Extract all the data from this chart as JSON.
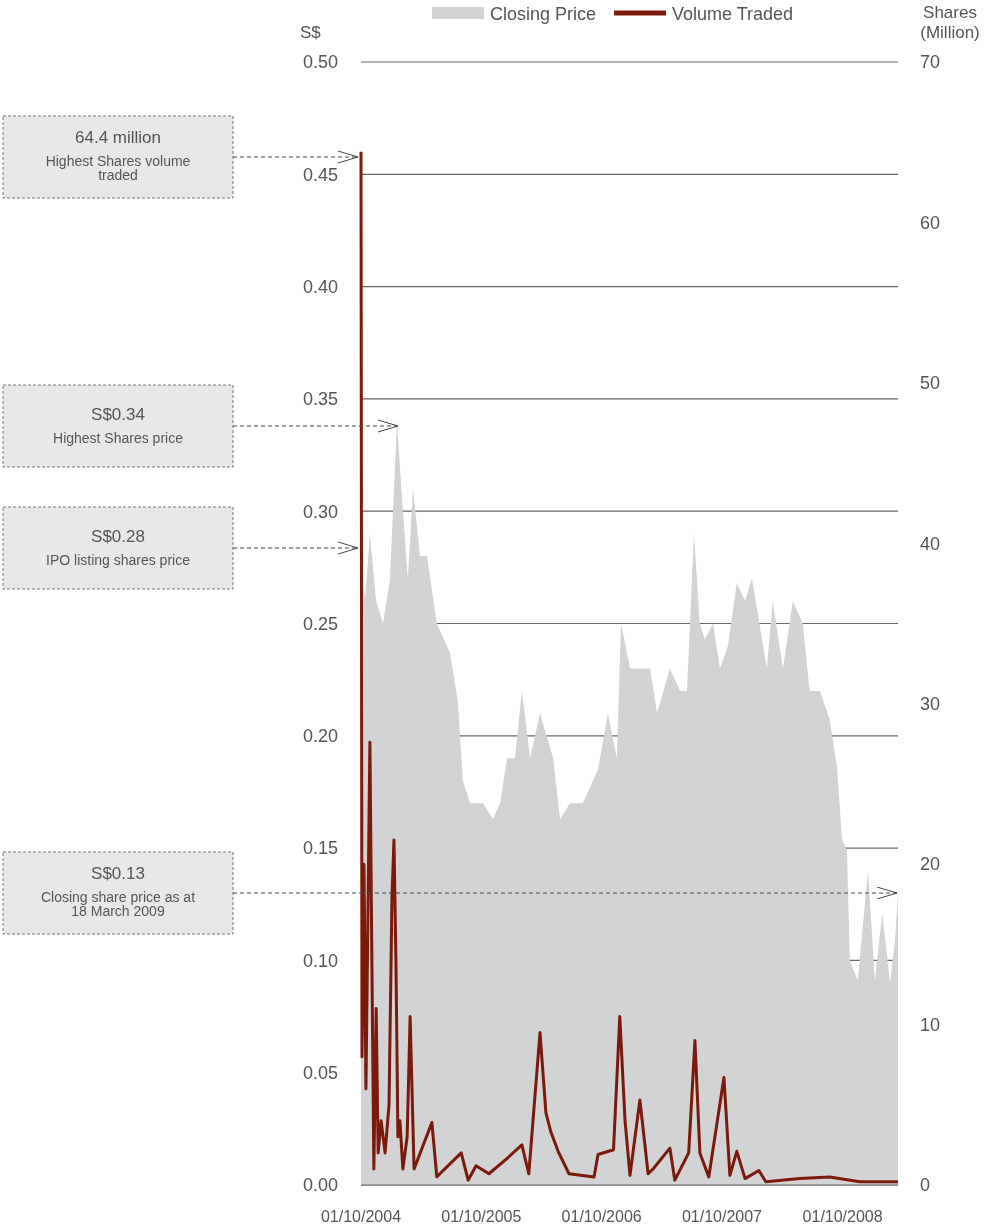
{
  "chart_data": {
    "type": "area",
    "ylabel": "S$",
    "y2label": "Shares (Million)",
    "legend": "top",
    "grid": "y",
    "xlim": [
      "2004-10-01",
      "2009-03-18"
    ],
    "xticks": [
      {
        "value": "2004-10-01",
        "label": "01/10/2004"
      },
      {
        "value": "2005-10-01",
        "label": "01/10/2005"
      },
      {
        "value": "2006-10-01",
        "label": "01/10/2006"
      },
      {
        "value": "2007-10-01",
        "label": "01/10/2007"
      },
      {
        "value": "2008-10-01",
        "label": "01/10/2008"
      }
    ],
    "ylim": [
      0,
      0.5
    ],
    "yticks": [
      {
        "value": 0,
        "label": "0.00"
      },
      {
        "value": 0.05,
        "label": "0.05"
      },
      {
        "value": 0.1,
        "label": "0.10"
      },
      {
        "value": 0.15,
        "label": "0.15"
      },
      {
        "value": 0.2,
        "label": "0.20"
      },
      {
        "value": 0.25,
        "label": "0.25"
      },
      {
        "value": 0.3,
        "label": "0.30"
      },
      {
        "value": 0.35,
        "label": "0.35"
      },
      {
        "value": 0.4,
        "label": "0.40"
      },
      {
        "value": 0.45,
        "label": "0.45"
      },
      {
        "value": 0.5,
        "label": "0.50"
      }
    ],
    "y2lim": [
      0,
      70
    ],
    "y2ticks": [
      0,
      10,
      20,
      30,
      40,
      50,
      60,
      70
    ],
    "series": [
      {
        "name": "Closing Price",
        "color": "#d2d3d5",
        "x": [
          "2004-10-01",
          "2004-10-13",
          "2004-10-28",
          "2004-11-16",
          "2004-12-07",
          "2004-12-28",
          "2005-01-18",
          "2005-02-05",
          "2005-02-20",
          "2005-03-08",
          "2005-03-29",
          "2005-04-19",
          "2005-05-19",
          "2005-06-28",
          "2005-07-22",
          "2005-08-06",
          "2005-08-28",
          "2005-10-06",
          "2005-11-05",
          "2005-11-27",
          "2005-12-18",
          "2006-01-11",
          "2006-02-01",
          "2006-02-26",
          "2006-03-28",
          "2006-05-07",
          "2006-05-28",
          "2006-06-27",
          "2006-08-05",
          "2006-09-20",
          "2006-10-20",
          "2006-11-16",
          "2006-11-29",
          "2006-12-26",
          "2007-01-31",
          "2007-02-25",
          "2007-03-18",
          "2007-04-26",
          "2007-05-27",
          "2007-06-17",
          "2007-07-08",
          "2007-07-26",
          "2007-08-10",
          "2007-09-04",
          "2007-09-25",
          "2007-10-19",
          "2007-11-15",
          "2007-12-10",
          "2007-12-31",
          "2008-01-15",
          "2008-02-14",
          "2008-03-03",
          "2008-04-03",
          "2008-05-03",
          "2008-06-02",
          "2008-06-23",
          "2008-07-24",
          "2008-08-23",
          "2008-09-14",
          "2008-09-29",
          "2008-10-14",
          "2008-10-23",
          "2008-11-16",
          "2008-12-17",
          "2009-01-07",
          "2009-01-29",
          "2009-02-22",
          "2009-03-09",
          "2009-03-18"
        ],
        "values": [
          0.28,
          0.26,
          0.29,
          0.26,
          0.25,
          0.27,
          0.34,
          0.3,
          0.27,
          0.31,
          0.28,
          0.28,
          0.25,
          0.237,
          0.215,
          0.18,
          0.17,
          0.17,
          0.163,
          0.17,
          0.19,
          0.19,
          0.22,
          0.19,
          0.21,
          0.19,
          0.163,
          0.17,
          0.17,
          0.185,
          0.21,
          0.19,
          0.25,
          0.23,
          0.23,
          0.23,
          0.21,
          0.23,
          0.22,
          0.22,
          0.29,
          0.25,
          0.243,
          0.25,
          0.23,
          0.24,
          0.268,
          0.26,
          0.27,
          0.257,
          0.23,
          0.26,
          0.23,
          0.26,
          0.25,
          0.22,
          0.22,
          0.207,
          0.186,
          0.154,
          0.149,
          0.1,
          0.091,
          0.14,
          0.091,
          0.121,
          0.09,
          0.109,
          0.13
        ]
      },
      {
        "name": "Volume Traded",
        "type": "line",
        "axis": "y2",
        "color": "#7b1a0a",
        "x": [
          "2004-10-01",
          "2004-10-04",
          "2004-10-10",
          "2004-10-16",
          "2004-10-28",
          "2004-11-03",
          "2004-11-09",
          "2004-11-16",
          "2004-11-22",
          "2004-12-01",
          "2004-12-13",
          "2004-12-25",
          "2005-01-03",
          "2005-01-09",
          "2005-01-15",
          "2005-01-21",
          "2005-01-27",
          "2005-02-05",
          "2005-02-18",
          "2005-02-27",
          "2005-03-11",
          "2005-05-04",
          "2005-05-19",
          "2005-06-07",
          "2005-08-01",
          "2005-08-22",
          "2005-09-15",
          "2005-10-24",
          "2005-12-15",
          "2006-02-01",
          "2006-02-22",
          "2006-03-28",
          "2006-04-15",
          "2006-04-30",
          "2006-05-22",
          "2006-06-24",
          "2006-09-08",
          "2006-09-20",
          "2006-11-06",
          "2006-11-25",
          "2006-12-11",
          "2006-12-26",
          "2007-01-25",
          "2007-02-19",
          "2007-03-06",
          "2007-04-26",
          "2007-05-11",
          "2007-06-22",
          "2007-07-11",
          "2007-07-26",
          "2007-08-22",
          "2007-10-07",
          "2007-10-25",
          "2007-11-15",
          "2007-12-10",
          "2008-01-21",
          "2008-02-11",
          "2008-05-24",
          "2008-08-23",
          "2008-11-22",
          "2009-03-18"
        ],
        "values": [
          64.4,
          8,
          20,
          6,
          27.6,
          14,
          1,
          11,
          2,
          4,
          2,
          5,
          18,
          21.5,
          14,
          3,
          4,
          1,
          3,
          10.5,
          1,
          3.9,
          0.5,
          0.9,
          2,
          0.3,
          1.2,
          0.7,
          1.6,
          2.5,
          0.7,
          9.5,
          4.5,
          3.3,
          2.1,
          0.7,
          0.5,
          1.9,
          2.2,
          10.5,
          4,
          0.6,
          5.3,
          0.7,
          1,
          2.3,
          0.3,
          2,
          9,
          2,
          0.5,
          6.7,
          0.6,
          2.1,
          0.4,
          0.9,
          0.2,
          0.4,
          0.5,
          0.2,
          0.2
        ]
      }
    ],
    "ref_lines": [
      {
        "axis": "y",
        "value": 0.13,
        "color": "#444444",
        "line_style": "dashed"
      }
    ],
    "annotations": [
      "64.4 million\nHighest Shares volume\ntraded",
      "S$0.34\nHighest Shares price",
      "S$0.28\nIPO listing shares price",
      "S$0.13\nClosing share price as at\n18 March 2009"
    ]
  }
}
